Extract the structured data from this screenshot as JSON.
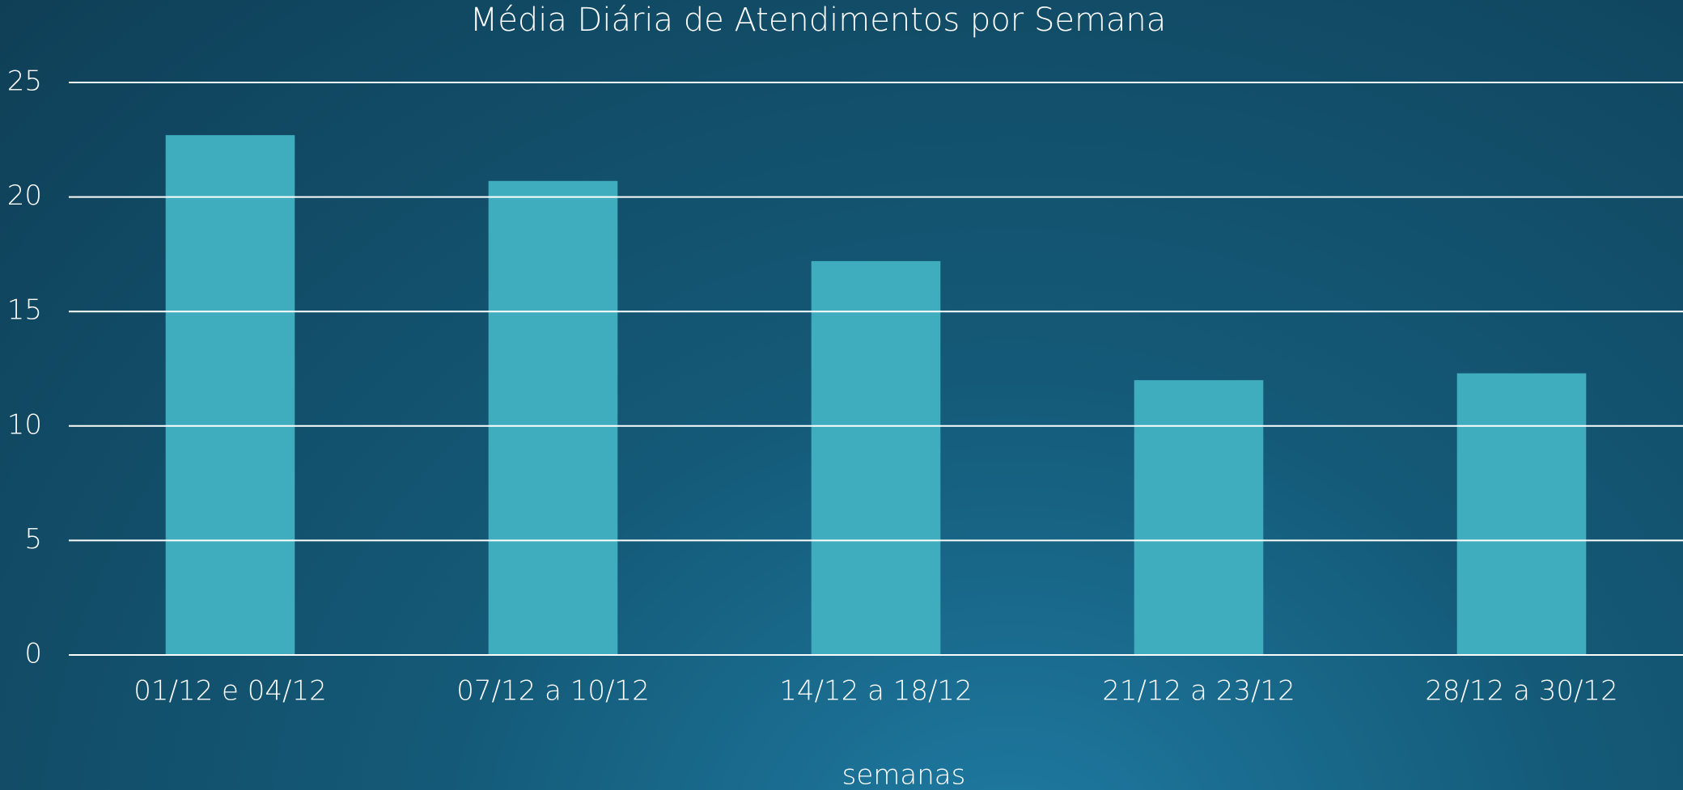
{
  "chart_data": {
    "type": "bar",
    "title": "Média Diária de Atendimentos por Semana",
    "x_label": "semanas",
    "categories": [
      "01/12 e 04/12",
      "07/12 a 10/12",
      "14/12 a 18/12",
      "21/12 a 23/12",
      "28/12 a 30/12"
    ],
    "values": [
      22.7,
      20.7,
      17.2,
      12.0,
      12.3
    ],
    "color": "#40adbf",
    "ylim": [
      0,
      25
    ],
    "yticks": [
      0,
      5,
      10,
      15,
      20,
      25
    ],
    "grid": true
  }
}
